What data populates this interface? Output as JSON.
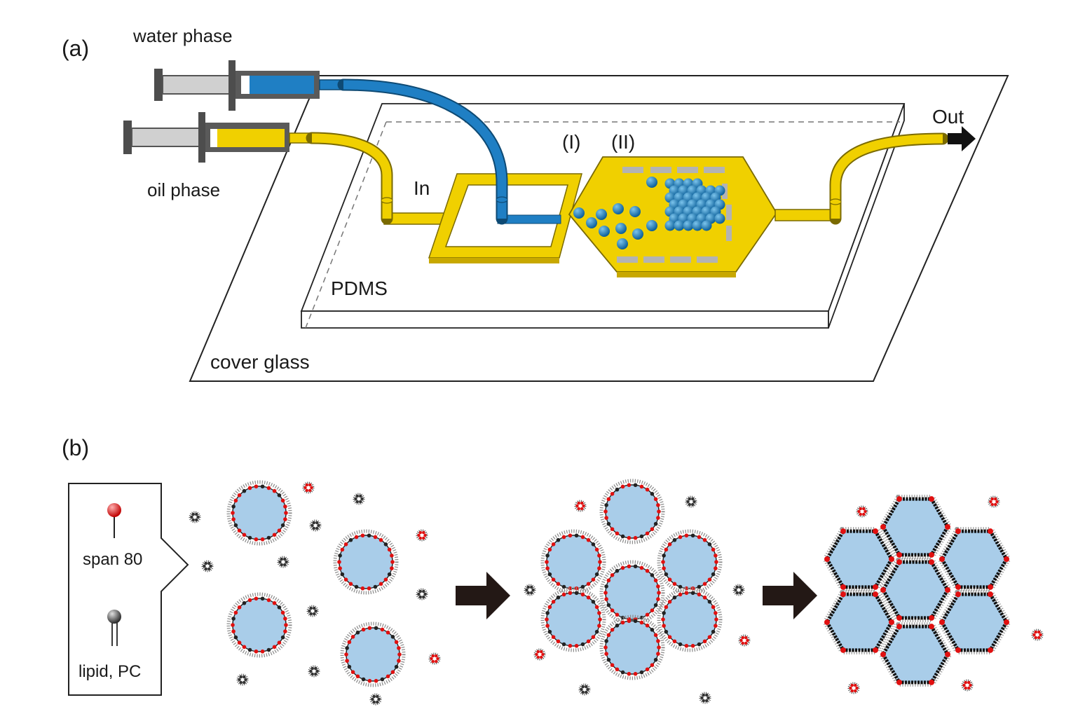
{
  "panel_a": {
    "label": "(a)",
    "water_phase": "water phase",
    "oil_phase": "oil phase",
    "inlet": "In",
    "outlet": "Out",
    "region_1": "(I)",
    "region_2": "(II)",
    "pdms": "PDMS",
    "cover_glass": "cover glass"
  },
  "panel_b": {
    "label": "(b)",
    "legend": {
      "span80": "span 80",
      "lipid": "lipid, PC"
    }
  },
  "colors": {
    "oil": "#f0d000",
    "oil_stroke": "#7a6a00",
    "water": "#1f7fc4",
    "droplet_fill": "#a9cde9",
    "span80": "#e01010",
    "lipid": "#555555",
    "arrow": "#231815",
    "pillar": "#b3b3b3"
  }
}
